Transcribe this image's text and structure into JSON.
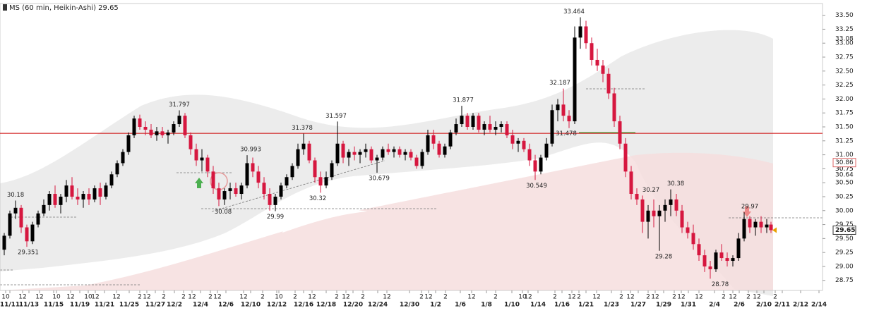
{
  "chart_data": {
    "type": "candlestick",
    "title": "MS (60 min, Heikin-Ashi) 29.65",
    "up_color": "#000000",
    "down_color": "#d6173f",
    "hline": 31.385,
    "hline_color": "#cc0000",
    "ylim": [
      28.57,
      33.71
    ],
    "xlim": [
      0,
      1165
    ],
    "yticks": [
      28.75,
      {
        "value": 29,
        "label": "29.00"
      },
      29.25,
      {
        "value": 29.5,
        "label": "29.50"
      },
      29.75,
      {
        "value": 30,
        "label": "30.00"
      },
      30.25,
      {
        "value": 30.5,
        "label": "30.50"
      },
      30.75,
      {
        "value": 31,
        "label": "31.00"
      },
      31.25,
      {
        "value": 31.5,
        "label": "31.50"
      },
      31.75,
      {
        "value": 32,
        "label": "32.00"
      },
      32.25,
      {
        "value": 32.5,
        "label": "32.50"
      },
      32.75,
      {
        "value": 33,
        "label": "33.00"
      },
      33.25,
      {
        "value": 33.5,
        "label": "33.50"
      }
    ],
    "xticks": [
      {
        "value": 14,
        "label": "11/11"
      },
      {
        "value": 41,
        "label": "11/13"
      },
      {
        "value": 76,
        "label": "11/15"
      },
      {
        "value": 113,
        "label": "11/19"
      },
      {
        "value": 148,
        "label": "11/21"
      },
      {
        "value": 183,
        "label": "11/25"
      },
      {
        "value": 220,
        "label": "11/27"
      },
      {
        "value": 247,
        "label": "12/2"
      },
      {
        "value": 284,
        "label": "12/4"
      },
      {
        "value": 320,
        "label": "12/6"
      },
      {
        "value": 355,
        "label": "12/10"
      },
      {
        "value": 392,
        "label": "12/12"
      },
      {
        "value": 430,
        "label": "12/16"
      },
      {
        "value": 462,
        "label": "12/18"
      },
      {
        "value": 500,
        "label": "12/20"
      },
      {
        "value": 535,
        "label": "12/24"
      },
      {
        "value": 580,
        "label": "12/30"
      },
      {
        "value": 617,
        "label": "1/2"
      },
      {
        "value": 652,
        "label": "1/6"
      },
      {
        "value": 689,
        "label": "1/8"
      },
      {
        "value": 725,
        "label": "1/10"
      },
      {
        "value": 762,
        "label": "1/14"
      },
      {
        "value": 796,
        "label": "1/16"
      },
      {
        "value": 830,
        "label": "1/21"
      },
      {
        "value": 866,
        "label": "1/23"
      },
      {
        "value": 904,
        "label": "1/27"
      },
      {
        "value": 940,
        "label": "1/29"
      },
      {
        "value": 975,
        "label": "1/31"
      },
      {
        "value": 1012,
        "label": "2/4"
      },
      {
        "value": 1047,
        "label": "2/6"
      },
      {
        "value": 1082,
        "label": "2/10"
      },
      {
        "value": 1108,
        "label": "2/11"
      },
      {
        "value": 1134,
        "label": "2/12"
      },
      {
        "value": 1160,
        "label": "2/14"
      }
    ],
    "minor_xticks": [
      {
        "value": 8,
        "label": "10"
      },
      {
        "value": 32,
        "label": "12"
      },
      {
        "value": 56,
        "label": "12"
      },
      {
        "value": 80,
        "label": "10"
      },
      {
        "value": 100,
        "label": "12"
      },
      {
        "value": 125,
        "label": "10"
      },
      {
        "value": 135,
        "label": "12"
      },
      {
        "value": 165,
        "label": "12"
      },
      {
        "value": 198,
        "label": "2"
      },
      {
        "value": 208,
        "label": "12"
      },
      {
        "value": 232,
        "label": "2"
      },
      {
        "value": 260,
        "label": "2"
      },
      {
        "value": 272,
        "label": "12"
      },
      {
        "value": 298,
        "label": "2"
      },
      {
        "value": 308,
        "label": "12"
      },
      {
        "value": 345,
        "label": "12"
      },
      {
        "value": 372,
        "label": "2"
      },
      {
        "value": 395,
        "label": "10"
      },
      {
        "value": 418,
        "label": "2"
      },
      {
        "value": 442,
        "label": "12"
      },
      {
        "value": 477,
        "label": "2"
      },
      {
        "value": 490,
        "label": "12"
      },
      {
        "value": 514,
        "label": "2"
      },
      {
        "value": 548,
        "label": "12"
      },
      {
        "value": 597,
        "label": "2"
      },
      {
        "value": 607,
        "label": "12"
      },
      {
        "value": 631,
        "label": "2"
      },
      {
        "value": 668,
        "label": "12"
      },
      {
        "value": 702,
        "label": "2"
      },
      {
        "value": 740,
        "label": "10"
      },
      {
        "value": 748,
        "label": "12"
      },
      {
        "value": 786,
        "label": "2"
      },
      {
        "value": 810,
        "label": "12"
      },
      {
        "value": 820,
        "label": "2"
      },
      {
        "value": 845,
        "label": "12"
      },
      {
        "value": 880,
        "label": "2"
      },
      {
        "value": 893,
        "label": "12"
      },
      {
        "value": 918,
        "label": "2"
      },
      {
        "value": 928,
        "label": "12"
      },
      {
        "value": 955,
        "label": "2"
      },
      {
        "value": 965,
        "label": "12"
      },
      {
        "value": 990,
        "label": "12"
      },
      {
        "value": 1025,
        "label": "2"
      },
      {
        "value": 1038,
        "label": "12"
      },
      {
        "value": 1060,
        "label": "2"
      },
      {
        "value": 1072,
        "label": "12"
      },
      {
        "value": 1098,
        "label": "2"
      }
    ],
    "candles": [
      [
        6,
        29.3,
        29.6,
        29.2,
        29.55
      ],
      [
        14,
        29.55,
        30.0,
        29.5,
        29.95
      ],
      [
        22,
        29.95,
        30.18,
        29.85,
        30.05
      ],
      [
        30,
        30.05,
        30.1,
        29.6,
        29.7
      ],
      [
        38,
        29.7,
        29.75,
        29.351,
        29.45
      ],
      [
        46,
        29.45,
        29.8,
        29.4,
        29.75
      ],
      [
        54,
        29.75,
        30.0,
        29.7,
        29.95
      ],
      [
        62,
        29.95,
        30.2,
        29.9,
        30.1
      ],
      [
        70,
        30.1,
        30.35,
        30.0,
        30.3
      ],
      [
        78,
        30.3,
        30.45,
        30.05,
        30.1
      ],
      [
        86,
        30.1,
        30.3,
        29.95,
        30.25
      ],
      [
        94,
        30.25,
        30.55,
        30.15,
        30.45
      ],
      [
        102,
        30.45,
        30.6,
        30.2,
        30.25
      ],
      [
        110,
        30.25,
        30.4,
        30.1,
        30.2
      ],
      [
        118,
        30.2,
        30.35,
        30.05,
        30.3
      ],
      [
        126,
        30.3,
        30.4,
        30.1,
        30.2
      ],
      [
        134,
        30.2,
        30.45,
        30.15,
        30.4
      ],
      [
        142,
        30.4,
        30.5,
        30.1,
        30.25
      ],
      [
        150,
        30.25,
        30.5,
        30.2,
        30.45
      ],
      [
        158,
        30.45,
        30.7,
        30.4,
        30.65
      ],
      [
        166,
        30.65,
        30.9,
        30.6,
        30.85
      ],
      [
        174,
        30.85,
        31.1,
        30.8,
        31.05
      ],
      [
        182,
        31.05,
        31.4,
        31.0,
        31.35
      ],
      [
        190,
        31.35,
        31.7,
        31.3,
        31.65
      ],
      [
        198,
        31.65,
        31.72,
        31.45,
        31.5
      ],
      [
        206,
        31.5,
        31.6,
        31.35,
        31.45
      ],
      [
        214,
        31.45,
        31.55,
        31.3,
        31.35
      ],
      [
        222,
        31.35,
        31.5,
        31.25,
        31.42
      ],
      [
        230,
        31.42,
        31.5,
        31.3,
        31.35
      ],
      [
        238,
        31.35,
        31.45,
        31.2,
        31.4
      ],
      [
        246,
        31.4,
        31.6,
        31.35,
        31.55
      ],
      [
        254,
        31.55,
        31.797,
        31.5,
        31.7
      ],
      [
        262,
        31.7,
        31.75,
        31.3,
        31.35
      ],
      [
        270,
        31.35,
        31.4,
        31.0,
        31.1
      ],
      [
        278,
        31.1,
        31.2,
        30.8,
        30.9
      ],
      [
        286,
        30.9,
        31.1,
        30.7,
        30.95
      ],
      [
        294,
        30.95,
        31.0,
        30.6,
        30.7
      ],
      [
        302,
        30.7,
        30.8,
        30.3,
        30.4
      ],
      [
        310,
        30.4,
        30.5,
        30.08,
        30.2
      ],
      [
        318,
        30.2,
        30.4,
        30.1,
        30.35
      ],
      [
        326,
        30.35,
        30.5,
        30.2,
        30.4
      ],
      [
        334,
        30.4,
        30.5,
        30.25,
        30.3
      ],
      [
        342,
        30.3,
        30.5,
        30.2,
        30.45
      ],
      [
        350,
        30.45,
        30.993,
        30.4,
        30.85
      ],
      [
        358,
        30.85,
        30.95,
        30.6,
        30.7
      ],
      [
        366,
        30.7,
        30.8,
        30.4,
        30.5
      ],
      [
        374,
        30.5,
        30.6,
        30.2,
        30.3
      ],
      [
        382,
        30.3,
        30.4,
        30.0,
        30.1
      ],
      [
        390,
        30.1,
        30.3,
        29.99,
        30.25
      ],
      [
        398,
        30.25,
        30.5,
        30.2,
        30.45
      ],
      [
        406,
        30.45,
        30.65,
        30.4,
        30.6
      ],
      [
        414,
        30.6,
        30.85,
        30.55,
        30.8
      ],
      [
        422,
        30.8,
        31.2,
        30.75,
        31.1
      ],
      [
        430,
        31.1,
        31.378,
        31.0,
        31.2
      ],
      [
        438,
        31.2,
        31.25,
        30.85,
        30.9
      ],
      [
        446,
        30.9,
        30.95,
        30.5,
        30.6
      ],
      [
        454,
        30.6,
        30.7,
        30.32,
        30.45
      ],
      [
        462,
        30.45,
        30.7,
        30.4,
        30.6
      ],
      [
        470,
        30.6,
        30.9,
        30.55,
        30.85
      ],
      [
        478,
        30.85,
        31.597,
        30.8,
        31.2
      ],
      [
        486,
        31.2,
        31.25,
        30.85,
        30.95
      ],
      [
        494,
        30.95,
        31.1,
        30.8,
        31.05
      ],
      [
        502,
        31.05,
        31.15,
        30.9,
        31.0
      ],
      [
        510,
        31.0,
        31.1,
        30.85,
        31.05
      ],
      [
        518,
        31.05,
        31.2,
        30.95,
        31.1
      ],
      [
        526,
        31.1,
        31.15,
        30.85,
        30.9
      ],
      [
        534,
        30.9,
        31.0,
        30.679,
        30.95
      ],
      [
        542,
        30.95,
        31.15,
        30.9,
        31.1
      ],
      [
        550,
        31.1,
        31.2,
        31.0,
        31.05
      ],
      [
        558,
        31.05,
        31.15,
        30.95,
        31.1
      ],
      [
        566,
        31.1,
        31.15,
        30.95,
        31.0
      ],
      [
        574,
        31.0,
        31.1,
        30.9,
        31.05
      ],
      [
        582,
        31.05,
        31.1,
        30.9,
        30.95
      ],
      [
        590,
        30.95,
        31.0,
        30.75,
        30.8
      ],
      [
        598,
        30.8,
        31.1,
        30.75,
        31.05
      ],
      [
        606,
        31.05,
        31.45,
        31.0,
        31.35
      ],
      [
        614,
        31.35,
        31.45,
        31.1,
        31.2
      ],
      [
        622,
        31.2,
        31.25,
        30.95,
        31.0
      ],
      [
        630,
        31.0,
        31.2,
        30.95,
        31.15
      ],
      [
        638,
        31.15,
        31.45,
        31.1,
        31.4
      ],
      [
        646,
        31.4,
        31.65,
        31.35,
        31.55
      ],
      [
        654,
        31.55,
        31.877,
        31.5,
        31.7
      ],
      [
        662,
        31.7,
        31.75,
        31.45,
        31.5
      ],
      [
        670,
        31.5,
        31.75,
        31.45,
        31.7
      ],
      [
        678,
        31.7,
        31.75,
        31.4,
        31.45
      ],
      [
        686,
        31.45,
        31.6,
        31.35,
        31.55
      ],
      [
        694,
        31.55,
        31.7,
        31.4,
        31.45
      ],
      [
        702,
        31.45,
        31.6,
        31.35,
        31.5
      ],
      [
        710,
        31.5,
        31.6,
        31.4,
        31.55
      ],
      [
        718,
        31.55,
        31.6,
        31.3,
        31.35
      ],
      [
        726,
        31.35,
        31.45,
        31.1,
        31.2
      ],
      [
        734,
        31.2,
        31.3,
        31.05,
        31.25
      ],
      [
        742,
        31.25,
        31.3,
        31.05,
        31.1
      ],
      [
        750,
        31.1,
        31.2,
        30.8,
        30.9
      ],
      [
        758,
        30.9,
        31.0,
        30.549,
        30.7
      ],
      [
        766,
        30.7,
        31.0,
        30.65,
        30.95
      ],
      [
        774,
        30.95,
        31.3,
        30.9,
        31.2
      ],
      [
        782,
        31.2,
        31.9,
        31.15,
        31.8
      ],
      [
        790,
        31.8,
        32.0,
        31.6,
        31.9
      ],
      [
        798,
        31.9,
        32.187,
        31.6,
        31.7
      ],
      [
        806,
        31.7,
        31.8,
        31.478,
        31.6
      ],
      [
        814,
        31.6,
        33.3,
        31.55,
        33.1
      ],
      [
        822,
        33.1,
        33.464,
        32.9,
        33.3
      ],
      [
        830,
        33.3,
        33.4,
        32.9,
        33.0
      ],
      [
        838,
        33.0,
        33.1,
        32.6,
        32.7
      ],
      [
        846,
        32.7,
        32.9,
        32.5,
        32.6
      ],
      [
        854,
        32.6,
        32.7,
        32.3,
        32.45
      ],
      [
        862,
        32.45,
        32.55,
        32.0,
        32.1
      ],
      [
        870,
        32.1,
        32.2,
        31.5,
        31.6
      ],
      [
        878,
        31.6,
        31.7,
        31.1,
        31.2
      ],
      [
        886,
        31.2,
        31.3,
        30.6,
        30.7
      ],
      [
        894,
        30.7,
        30.8,
        30.2,
        30.3
      ],
      [
        902,
        30.3,
        30.4,
        30.1,
        30.2
      ],
      [
        910,
        30.2,
        30.27,
        29.6,
        29.8
      ],
      [
        918,
        29.8,
        30.1,
        29.5,
        30.0
      ],
      [
        926,
        30.0,
        30.2,
        29.7,
        29.9
      ],
      [
        934,
        29.9,
        30.1,
        29.28,
        30.0
      ],
      [
        942,
        30.0,
        30.2,
        29.8,
        30.1
      ],
      [
        950,
        30.1,
        30.38,
        29.9,
        30.2
      ],
      [
        958,
        30.2,
        30.3,
        29.9,
        30.0
      ],
      [
        966,
        30.0,
        30.1,
        29.6,
        29.7
      ],
      [
        974,
        29.7,
        29.8,
        29.5,
        29.6
      ],
      [
        982,
        29.6,
        29.75,
        29.3,
        29.4
      ],
      [
        990,
        29.4,
        29.5,
        29.1,
        29.2
      ],
      [
        998,
        29.2,
        29.3,
        28.9,
        29.0
      ],
      [
        1006,
        29.0,
        29.1,
        28.78,
        28.95
      ],
      [
        1014,
        28.95,
        29.3,
        28.9,
        29.25
      ],
      [
        1022,
        29.25,
        29.4,
        29.1,
        29.15
      ],
      [
        1030,
        29.15,
        29.25,
        29.0,
        29.1
      ],
      [
        1038,
        29.1,
        29.2,
        29.0,
        29.15
      ],
      [
        1046,
        29.15,
        29.6,
        29.1,
        29.5
      ],
      [
        1054,
        29.5,
        29.97,
        29.45,
        29.85
      ],
      [
        1062,
        29.85,
        29.9,
        29.6,
        29.7
      ],
      [
        1070,
        29.7,
        29.85,
        29.55,
        29.8
      ],
      [
        1078,
        29.8,
        29.9,
        29.6,
        29.7
      ],
      [
        1086,
        29.7,
        29.85,
        29.6,
        29.75
      ],
      [
        1092,
        29.75,
        29.8,
        29.6,
        29.65
      ]
    ],
    "annotations": [
      {
        "x": 22,
        "value": 30.18,
        "pos": "above"
      },
      {
        "x": 40,
        "value": 29.351,
        "pos": "below"
      },
      {
        "x": 254,
        "value": 31.797,
        "pos": "above"
      },
      {
        "x": 316,
        "value": 30.08,
        "pos": "below"
      },
      {
        "x": 355,
        "value": 30.993,
        "pos": "above"
      },
      {
        "x": 390,
        "value": 29.99,
        "pos": "below"
      },
      {
        "x": 428,
        "value": 31.378,
        "pos": "above"
      },
      {
        "x": 476,
        "value": 31.597,
        "pos": "above"
      },
      {
        "x": 450,
        "value": 30.32,
        "pos": "below"
      },
      {
        "x": 537,
        "value": 30.679,
        "pos": "below"
      },
      {
        "x": 656,
        "value": 31.877,
        "pos": "above"
      },
      {
        "x": 793,
        "value": 32.187,
        "pos": "above"
      },
      {
        "x": 802,
        "value": 31.478,
        "pos": "below"
      },
      {
        "x": 760,
        "value": 30.549,
        "pos": "below"
      },
      {
        "x": 813,
        "value": 33.464,
        "pos": "above"
      },
      {
        "x": 922,
        "value": 30.27,
        "pos": "above"
      },
      {
        "x": 957,
        "value": 30.38,
        "pos": "above"
      },
      {
        "x": 940,
        "value": 29.28,
        "pos": "below"
      },
      {
        "x": 1020,
        "value": 28.78,
        "pos": "below"
      },
      {
        "x": 1062,
        "value": 29.97,
        "pos": "above"
      }
    ],
    "price_tags": [
      33.08,
      30.75,
      30.64
    ],
    "boxed_tag": 30.86,
    "last_price": 29.65
  }
}
